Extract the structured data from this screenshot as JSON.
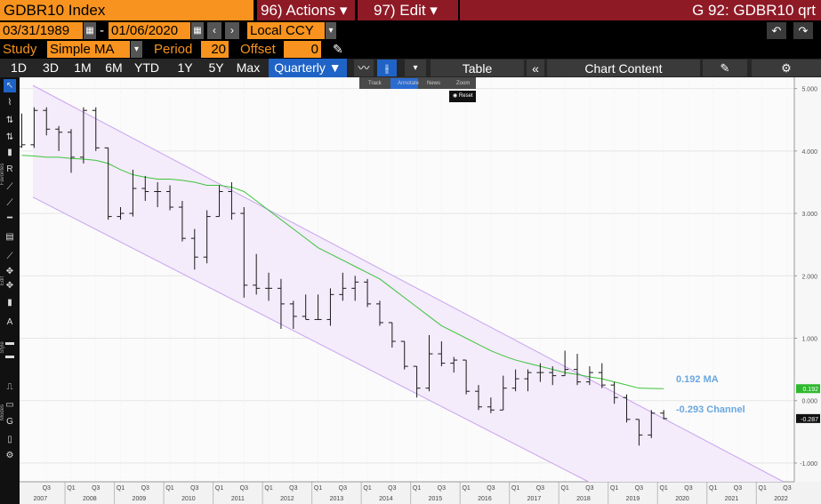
{
  "header": {
    "ticker": "GDBR10 Index",
    "actions": "96) Actions ▾",
    "edit": "97) Edit ▾",
    "function": "G 92: GDBR10 qrt"
  },
  "range": {
    "start": "03/31/1989",
    "separator": "-",
    "end": "01/06/2020",
    "currency": "Local CCY"
  },
  "study": {
    "label": "Study",
    "name": "Simple MA",
    "period_label": "Period",
    "period": 20,
    "offset_label": "Offset",
    "offset": 0
  },
  "toolbar": {
    "periods": [
      "1D",
      "3D",
      "1M",
      "6M",
      "YTD",
      "1Y",
      "5Y",
      "Max"
    ],
    "frequency": "Quarterly ▼",
    "table": "Table",
    "chart_content": "Chart Content"
  },
  "tooltip": {
    "items": [
      "Track",
      "Annotate",
      "News",
      "Zoom"
    ],
    "reset": "Reset"
  },
  "sidebar": {
    "sections": [
      "Favorites",
      "Edit",
      "Style",
      "Modes"
    ]
  },
  "chart_data": {
    "type": "ohlc",
    "x": [
      2007.125,
      2007.375,
      2007.625,
      2007.875,
      2008.125,
      2008.375,
      2008.625,
      2008.875,
      2009.125,
      2009.375,
      2009.625,
      2009.875,
      2010.125,
      2010.375,
      2010.625,
      2010.875,
      2011.125,
      2011.375,
      2011.625,
      2011.875,
      2012.125,
      2012.375,
      2012.625,
      2012.875,
      2013.125,
      2013.375,
      2013.625,
      2013.875,
      2014.125,
      2014.375,
      2014.625,
      2014.875,
      2015.125,
      2015.375,
      2015.625,
      2015.875,
      2016.125,
      2016.375,
      2016.625,
      2016.875,
      2017.125,
      2017.375,
      2017.625,
      2017.875,
      2018.125,
      2018.375,
      2018.625,
      2018.875,
      2019.125,
      2019.375,
      2019.625,
      2019.875,
      2020.125
    ],
    "open": [
      4.07,
      4.1,
      4.65,
      4.35,
      4.3,
      3.9,
      4.65,
      4.05,
      2.95,
      3.0,
      3.4,
      3.35,
      3.35,
      3.1,
      2.6,
      2.3,
      2.95,
      3.35,
      3.0,
      1.85,
      1.8,
      1.8,
      1.55,
      1.35,
      1.3,
      1.3,
      1.7,
      1.8,
      1.9,
      1.55,
      1.25,
      0.95,
      0.55,
      0.2,
      0.75,
      0.6,
      0.65,
      0.15,
      -0.1,
      -0.15,
      0.2,
      0.35,
      0.45,
      0.45,
      0.4,
      0.5,
      0.3,
      0.45,
      0.25,
      0.05,
      -0.3,
      -0.55,
      -0.2
    ],
    "high": [
      4.6,
      4.7,
      4.7,
      4.4,
      4.35,
      4.7,
      4.7,
      4.05,
      3.1,
      3.7,
      3.6,
      3.5,
      3.45,
      3.2,
      2.75,
      3.05,
      3.45,
      3.5,
      3.1,
      2.35,
      2.05,
      1.95,
      1.6,
      1.7,
      1.7,
      1.8,
      2.05,
      2.0,
      1.95,
      1.6,
      1.25,
      0.95,
      0.55,
      1.05,
      0.95,
      0.7,
      0.65,
      0.25,
      0.05,
      0.4,
      0.5,
      0.5,
      0.6,
      0.55,
      0.8,
      0.75,
      0.55,
      0.6,
      0.3,
      0.1,
      -0.3,
      -0.15,
      -0.15
    ],
    "low": [
      4.05,
      4.05,
      4.25,
      4.0,
      3.65,
      3.8,
      4.0,
      2.9,
      2.9,
      2.95,
      3.2,
      3.1,
      3.05,
      2.55,
      2.1,
      2.2,
      2.95,
      2.9,
      1.65,
      1.7,
      1.6,
      1.15,
      1.15,
      1.3,
      1.3,
      1.2,
      1.6,
      1.6,
      1.5,
      1.2,
      0.85,
      0.5,
      0.05,
      0.15,
      0.55,
      0.45,
      0.1,
      -0.15,
      -0.2,
      -0.15,
      0.15,
      0.15,
      0.3,
      0.25,
      0.4,
      0.25,
      0.25,
      0.2,
      -0.05,
      -0.35,
      -0.72,
      -0.6,
      -0.3
    ],
    "close": [
      4.1,
      4.65,
      4.35,
      4.3,
      3.9,
      4.65,
      4.05,
      2.95,
      3.0,
      3.4,
      3.35,
      3.35,
      3.1,
      2.6,
      2.3,
      2.95,
      3.35,
      3.0,
      1.85,
      1.8,
      1.8,
      1.55,
      1.35,
      1.3,
      1.3,
      1.7,
      1.8,
      1.9,
      1.55,
      1.25,
      0.95,
      0.55,
      0.2,
      0.75,
      0.6,
      0.65,
      0.15,
      -0.1,
      -0.15,
      0.2,
      0.35,
      0.45,
      0.45,
      0.4,
      0.5,
      0.3,
      0.45,
      0.25,
      0.05,
      -0.3,
      -0.55,
      -0.2,
      -0.287
    ],
    "color": "#1a1a1a",
    "moving_average": {
      "color": "#3cc43c",
      "values": [
        3.93,
        3.92,
        3.9,
        3.9,
        3.88,
        3.87,
        3.85,
        3.8,
        3.7,
        3.62,
        3.58,
        3.55,
        3.55,
        3.53,
        3.5,
        3.45,
        3.45,
        3.42,
        3.35,
        3.2,
        3.05,
        2.9,
        2.75,
        2.6,
        2.45,
        2.35,
        2.25,
        2.15,
        2.05,
        1.95,
        1.8,
        1.65,
        1.5,
        1.35,
        1.2,
        1.1,
        1.0,
        0.9,
        0.8,
        0.72,
        0.65,
        0.6,
        0.55,
        0.5,
        0.45,
        0.42,
        0.38,
        0.35,
        0.3,
        0.25,
        0.2,
        0.195,
        0.192
      ]
    },
    "channel": {
      "color": "#c9a3ee",
      "fill": "#f4ebfb",
      "upper": {
        "x": [
          2007.35,
          2022.55
        ],
        "values": [
          5.05,
          -1.3
        ]
      },
      "lower": {
        "x": [
          2007.35,
          2018.6
        ],
        "values": [
          3.26,
          -1.3
        ]
      }
    },
    "annotations": [
      "0.192 MA",
      "-0.293 Channel"
    ],
    "markers": [
      {
        "value": 0.192,
        "label": "0.192",
        "color": "#2fb82f"
      },
      {
        "value": -0.287,
        "label": "-0.287",
        "color": "#111111"
      }
    ],
    "xlim": [
      2007.08,
      2022.77
    ],
    "ylim": [
      -1.3,
      5.18
    ],
    "yticks": [
      {
        "value": 5,
        "label": "5.000"
      },
      {
        "value": 4,
        "label": "4.000"
      },
      {
        "value": 3,
        "label": "3.000"
      },
      {
        "value": 2,
        "label": "2.000"
      },
      {
        "value": 1,
        "label": "1.000"
      },
      {
        "value": 0,
        "label": "0.000"
      },
      {
        "value": -1,
        "label": "-1.000"
      }
    ],
    "xticks": [
      {
        "value": 2007.625,
        "label": "Q3"
      },
      {
        "value": 2008.125,
        "label": "Q1"
      },
      {
        "value": 2008.625,
        "label": "Q3"
      },
      {
        "value": 2009.125,
        "label": "Q1"
      },
      {
        "value": 2009.625,
        "label": "Q3"
      },
      {
        "value": 2010.125,
        "label": "Q1"
      },
      {
        "value": 2010.625,
        "label": "Q3"
      },
      {
        "value": 2011.125,
        "label": "Q1"
      },
      {
        "value": 2011.625,
        "label": "Q3"
      },
      {
        "value": 2012.125,
        "label": "Q1"
      },
      {
        "value": 2012.625,
        "label": "Q3"
      },
      {
        "value": 2013.125,
        "label": "Q1"
      },
      {
        "value": 2013.625,
        "label": "Q3"
      },
      {
        "value": 2014.125,
        "label": "Q1"
      },
      {
        "value": 2014.625,
        "label": "Q3"
      },
      {
        "value": 2015.125,
        "label": "Q1"
      },
      {
        "value": 2015.625,
        "label": "Q3"
      },
      {
        "value": 2016.125,
        "label": "Q1"
      },
      {
        "value": 2016.625,
        "label": "Q3"
      },
      {
        "value": 2017.125,
        "label": "Q1"
      },
      {
        "value": 2017.625,
        "label": "Q3"
      },
      {
        "value": 2018.125,
        "label": "Q1"
      },
      {
        "value": 2018.625,
        "label": "Q3"
      },
      {
        "value": 2019.125,
        "label": "Q1"
      },
      {
        "value": 2019.625,
        "label": "Q3"
      },
      {
        "value": 2020.125,
        "label": "Q1"
      },
      {
        "value": 2020.625,
        "label": "Q3"
      },
      {
        "value": 2021.125,
        "label": "Q1"
      },
      {
        "value": 2021.625,
        "label": "Q3"
      },
      {
        "value": 2022.125,
        "label": "Q1"
      },
      {
        "value": 2022.625,
        "label": "Q3"
      }
    ],
    "xticks_years": [
      {
        "value": 2007.5,
        "label": "2007"
      },
      {
        "value": 2008.5,
        "label": "2008"
      },
      {
        "value": 2009.5,
        "label": "2009"
      },
      {
        "value": 2010.5,
        "label": "2010"
      },
      {
        "value": 2011.5,
        "label": "2011"
      },
      {
        "value": 2012.5,
        "label": "2012"
      },
      {
        "value": 2013.5,
        "label": "2013"
      },
      {
        "value": 2014.5,
        "label": "2014"
      },
      {
        "value": 2015.5,
        "label": "2015"
      },
      {
        "value": 2016.5,
        "label": "2016"
      },
      {
        "value": 2017.5,
        "label": "2017"
      },
      {
        "value": 2018.5,
        "label": "2018"
      },
      {
        "value": 2019.5,
        "label": "2019"
      },
      {
        "value": 2020.5,
        "label": "2020"
      },
      {
        "value": 2021.5,
        "label": "2021"
      },
      {
        "value": 2022.5,
        "label": "2022"
      }
    ],
    "grid": true
  }
}
